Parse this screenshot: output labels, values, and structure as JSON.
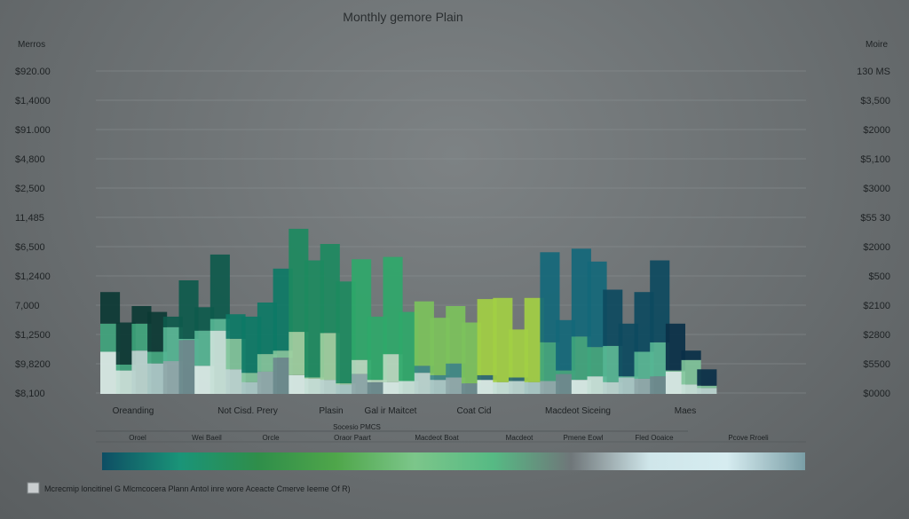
{
  "chart_data": {
    "type": "bar",
    "title": "Monthly gemore Plain",
    "y_axis_left": {
      "label": "Merros",
      "ticks": [
        "$920.00",
        "$1,4000",
        "$91.000",
        "$4,800",
        "$2,500",
        "11,485",
        "$6,500",
        "$1,2400",
        "7,000",
        "$1,2500",
        "$9,8200",
        "$8,100"
      ]
    },
    "y_axis_right": {
      "label": "Moire",
      "ticks": [
        "130 MS",
        "$3,500",
        "$2000",
        "$5,100",
        "$3000",
        "$55 30",
        "$2000",
        "$500",
        "$2100",
        "$2800",
        "$5500",
        "$0000"
      ]
    },
    "x_axis_labels": [
      "Oreanding",
      "Not Cisd. Prery",
      "Plasin",
      "Gal ir Maitcet",
      "Coat Cid",
      "Macdeot Siceing",
      "Maes"
    ],
    "sub_labels": [
      "Oroel",
      "Wei Baeil",
      "Orcle",
      "Oraor Paart",
      "Macdeot Boat",
      "Macdeot",
      "Pmene Eowl",
      "Fled Ooaice",
      "Pcove Rroeli"
    ],
    "sub_caption": "Socesio PMCS",
    "grid": true,
    "series": [
      {
        "values": [
          27,
          36,
          15,
          34,
          9,
          50,
          20,
          55,
          21,
          48,
          44,
          70,
          88,
          100,
          76,
          87,
          86,
          54,
          83,
          59,
          55,
          49,
          49,
          52,
          65,
          72,
          41,
          72,
          77,
          43,
          75,
          73,
          48,
          45,
          51,
          70,
          40,
          8,
          14
        ]
      },
      {
        "values": [
          24,
          5,
          23,
          10,
          29,
          1,
          30,
          10,
          26,
          8,
          15,
          6,
          37,
          1,
          40,
          1,
          12,
          2,
          24,
          0,
          6,
          4,
          12,
          0,
          4,
          0,
          3,
          0,
          33,
          3,
          37,
          25,
          31,
          1,
          23,
          29,
          1,
          21,
          2
        ]
      },
      {
        "values": [
          36,
          20,
          37,
          26,
          28,
          46,
          24,
          54,
          21,
          10,
          19,
          31,
          16,
          13,
          12,
          8,
          17,
          10,
          10,
          11,
          18,
          12,
          14,
          9,
          12,
          10,
          11,
          10,
          11,
          17,
          12,
          15,
          10,
          14,
          13,
          15,
          19,
          8,
          5
        ]
      }
    ],
    "series_colors": {
      "top": [
        "#0c3a34",
        "#0e5a4c",
        "#0d7a66",
        "#1d8a60",
        "#2fa86a",
        "#7cc25c",
        "#a2cf44",
        "#14687a",
        "#0d4a60",
        "#0a3048"
      ],
      "mid": [
        "#3fa57c",
        "#55b694",
        "#7fc49a",
        "#9fd0a0",
        "#b8dcc0",
        "#3e8a86",
        "#2e6a72"
      ],
      "bottom": [
        "#d7e9e4",
        "#c6dfd6",
        "#b9d3cd",
        "#a9c6c4",
        "#8fa9aa",
        "#6d8a8d"
      ]
    },
    "legend": {
      "gradient_stops": [
        "#0e4e64",
        "#1a9478",
        "#2f8e4a",
        "#4fa64a",
        "#7cc68a",
        "#56ba84",
        "#6f7679",
        "#cfe6ea",
        "#d6ecf0",
        "#7a9ea6"
      ],
      "caption": "Mcrecmip loncitinel G Mlcmcocera Plann Antol inre wore Aceacte Cmerve Ieeme Of R)"
    }
  }
}
